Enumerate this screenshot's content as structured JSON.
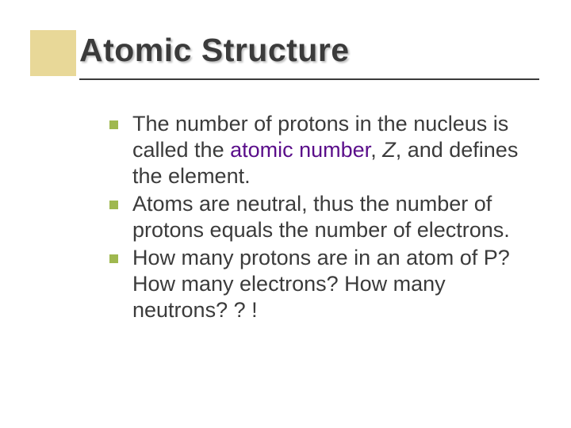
{
  "slide": {
    "title": "Atomic Structure",
    "accent_color": "#e8d898",
    "bullet_color": "#9fb84f",
    "text_color": "#3b3b3b",
    "term_color": "#5a0e8a",
    "background_color": "#ffffff",
    "title_fontsize": 41,
    "body_fontsize": 27,
    "bullets": [
      {
        "pre": "The number of protons in the nucleus is called the ",
        "term": "atomic number",
        "post_italic_pre": ", ",
        "italic": "Z",
        "post": ", and defines the element."
      },
      {
        "text": "Atoms are neutral, thus the number of protons equals the number of electrons."
      },
      {
        "text": "How many protons are in an atom of P? How many electrons? How many neutrons? ? !"
      }
    ]
  }
}
